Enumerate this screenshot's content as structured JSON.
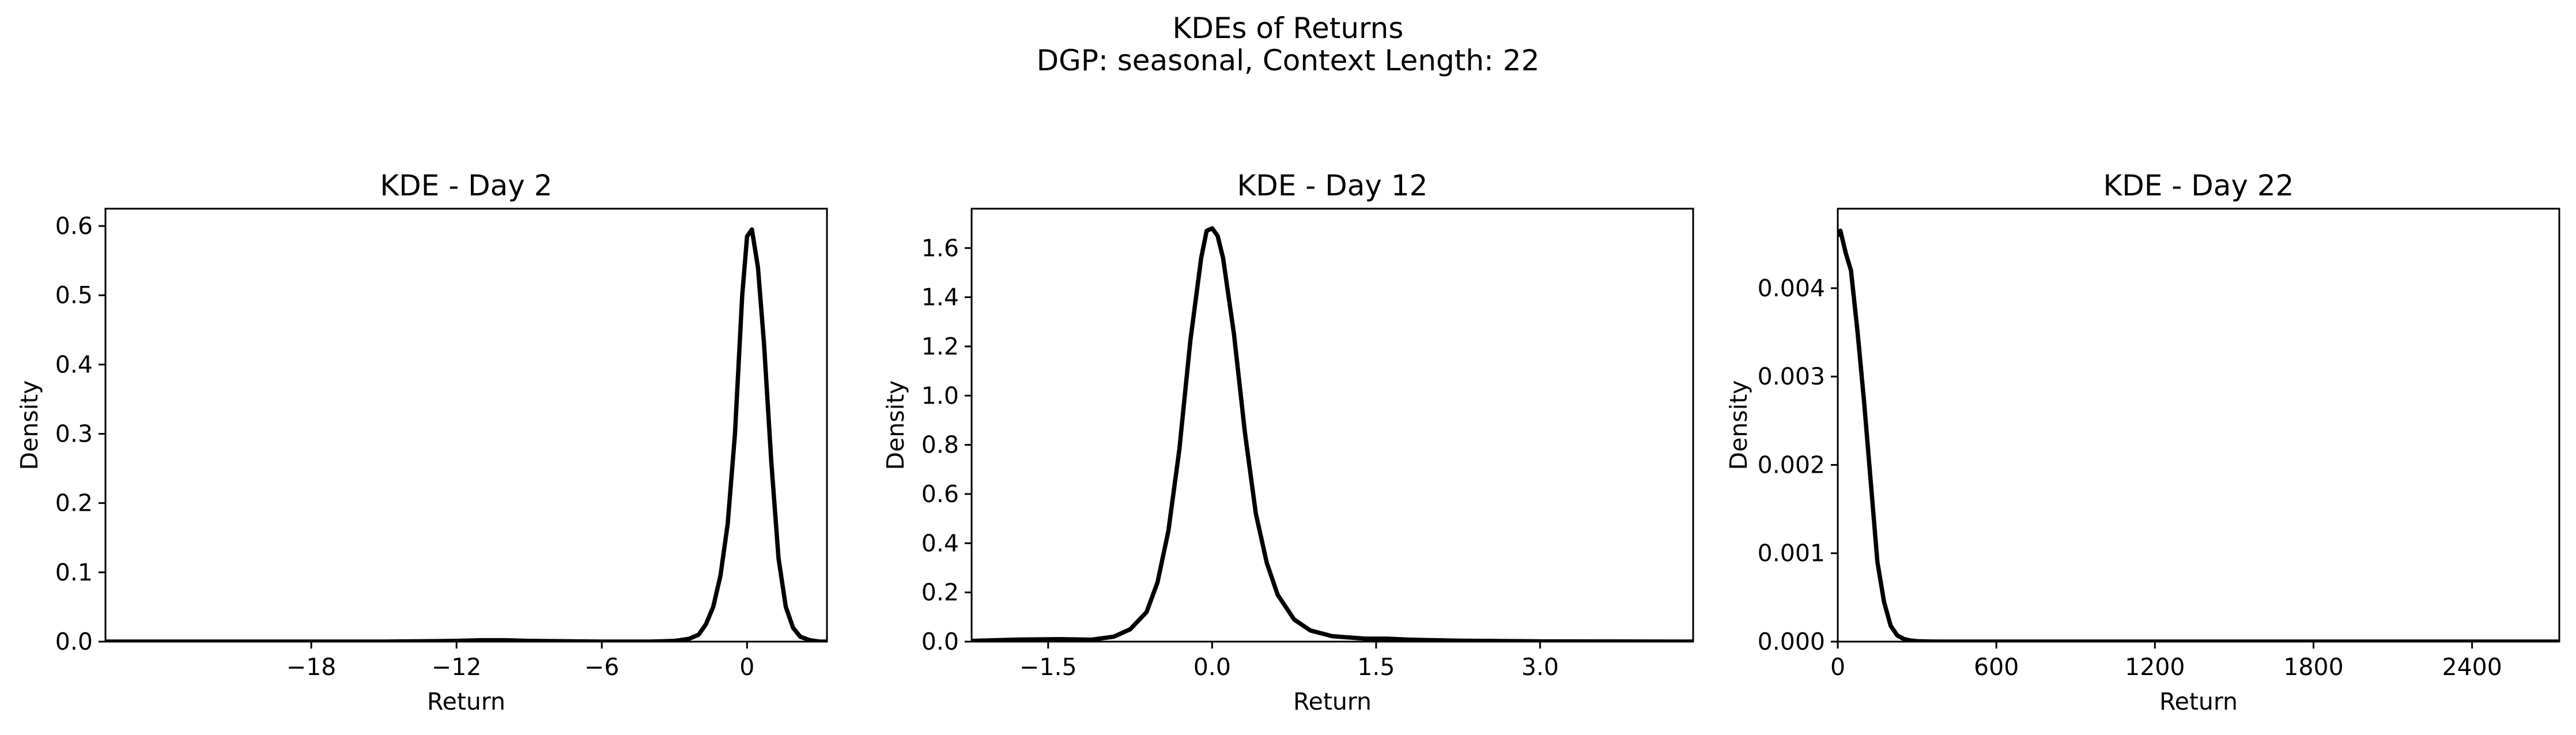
{
  "figure": {
    "title": "KDEs of Returns",
    "subtitle": "DGP: seasonal, Context Length: 22"
  },
  "colors": {
    "line": "#000000",
    "background": "#ffffff"
  },
  "chart_data": [
    {
      "type": "line",
      "title": "KDE - Day 2",
      "xlabel": "Return",
      "ylabel": "Density",
      "xlim": [
        -26.5,
        3.3
      ],
      "ylim": [
        0,
        0.625
      ],
      "xticks": [
        -18,
        -12,
        -6,
        0
      ],
      "xtick_labels": [
        "−18",
        "−12",
        "−6",
        "0"
      ],
      "yticks": [
        0.0,
        0.1,
        0.2,
        0.3,
        0.4,
        0.5,
        0.6
      ],
      "ytick_labels": [
        "0.0",
        "0.1",
        "0.2",
        "0.3",
        "0.4",
        "0.5",
        "0.6"
      ],
      "grid": false,
      "legend": "none",
      "series": [
        {
          "x": [
            -26.5,
            -20,
            -15,
            -12,
            -11,
            -10,
            -9,
            -6,
            -4,
            -3,
            -2.4,
            -2.0,
            -1.7,
            -1.4,
            -1.1,
            -0.8,
            -0.5,
            -0.2,
            0.0,
            0.2,
            0.45,
            0.7,
            1.0,
            1.3,
            1.6,
            1.9,
            2.2,
            2.6,
            3.0,
            3.3
          ],
          "y": [
            0.0,
            0.0,
            0.0,
            0.001,
            0.002,
            0.002,
            0.001,
            0.0,
            0.0,
            0.001,
            0.004,
            0.01,
            0.025,
            0.05,
            0.095,
            0.17,
            0.3,
            0.5,
            0.585,
            0.595,
            0.54,
            0.43,
            0.26,
            0.12,
            0.05,
            0.02,
            0.007,
            0.002,
            0.0,
            0.0
          ]
        }
      ]
    },
    {
      "type": "line",
      "title": "KDE - Day 12",
      "xlabel": "Return",
      "ylabel": "Density",
      "xlim": [
        -2.2,
        4.4
      ],
      "ylim": [
        0,
        1.76
      ],
      "xticks": [
        -1.5,
        0.0,
        1.5,
        3.0
      ],
      "xtick_labels": [
        "−1.5",
        "0.0",
        "1.5",
        "3.0"
      ],
      "yticks": [
        0.0,
        0.2,
        0.4,
        0.6,
        0.8,
        1.0,
        1.2,
        1.4,
        1.6
      ],
      "ytick_labels": [
        "0.0",
        "0.2",
        "0.4",
        "0.6",
        "0.8",
        "1.0",
        "1.2",
        "1.4",
        "1.6"
      ],
      "grid": false,
      "legend": "none",
      "series": [
        {
          "x": [
            -2.2,
            -1.8,
            -1.4,
            -1.1,
            -0.9,
            -0.75,
            -0.6,
            -0.5,
            -0.4,
            -0.3,
            -0.2,
            -0.1,
            -0.05,
            0.0,
            0.05,
            0.1,
            0.2,
            0.3,
            0.4,
            0.5,
            0.6,
            0.75,
            0.9,
            1.1,
            1.4,
            1.6,
            1.8,
            2.2,
            3.0,
            4.4
          ],
          "y": [
            0.003,
            0.008,
            0.01,
            0.008,
            0.02,
            0.05,
            0.12,
            0.24,
            0.45,
            0.78,
            1.22,
            1.56,
            1.67,
            1.68,
            1.65,
            1.56,
            1.25,
            0.85,
            0.52,
            0.32,
            0.19,
            0.09,
            0.045,
            0.022,
            0.012,
            0.012,
            0.008,
            0.004,
            0.001,
            0.0
          ]
        }
      ]
    },
    {
      "type": "line",
      "title": "KDE - Day 22",
      "xlabel": "Return",
      "ylabel": "Density",
      "xlim": [
        0,
        2730
      ],
      "ylim": [
        0,
        0.0049
      ],
      "xticks": [
        0,
        600,
        1200,
        1800,
        2400
      ],
      "xtick_labels": [
        "0",
        "600",
        "1200",
        "1800",
        "2400"
      ],
      "yticks": [
        0.0,
        0.001,
        0.002,
        0.003,
        0.004
      ],
      "ytick_labels": [
        "0.000",
        "0.001",
        "0.002",
        "0.003",
        "0.004"
      ],
      "grid": false,
      "legend": "none",
      "series": [
        {
          "x": [
            0,
            10,
            30,
            50,
            75,
            100,
            125,
            150,
            175,
            200,
            225,
            250,
            275,
            300,
            350,
            400,
            500,
            700,
            1000,
            1500,
            2000,
            2730
          ],
          "y": [
            0.0046,
            0.00465,
            0.0044,
            0.0042,
            0.0035,
            0.0027,
            0.0018,
            0.0009,
            0.00045,
            0.00018,
            7e-05,
            3e-05,
            1.2e-05,
            5e-06,
            1e-06,
            0.0,
            0.0,
            0.0,
            0.0,
            0.0,
            0.0,
            0.0
          ]
        }
      ]
    }
  ]
}
